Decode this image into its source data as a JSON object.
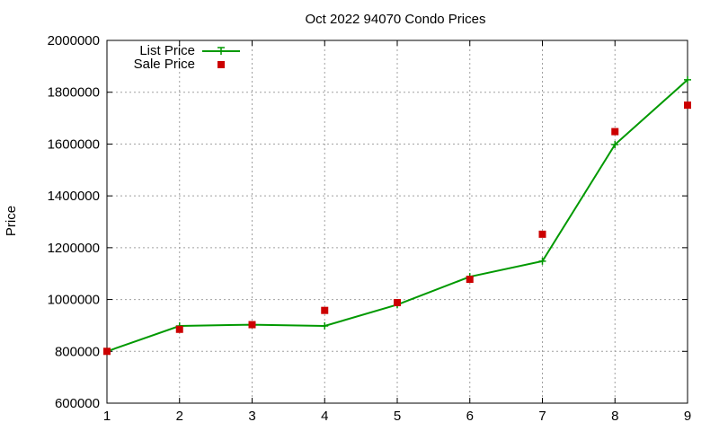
{
  "chart_data": {
    "type": "line",
    "title": "Oct 2022 94070 Condo Prices",
    "xlabel": "",
    "ylabel": "Price",
    "xlim": [
      1,
      9
    ],
    "ylim": [
      600000,
      2000000
    ],
    "xticks": [
      1,
      2,
      3,
      4,
      5,
      6,
      7,
      8,
      9
    ],
    "yticks": [
      600000,
      800000,
      1000000,
      1200000,
      1400000,
      1600000,
      1800000,
      2000000
    ],
    "grid": true,
    "legend_position": "top-left",
    "x": [
      1,
      2,
      3,
      4,
      5,
      6,
      7,
      8,
      9
    ],
    "series": [
      {
        "name": "List Price",
        "style": "line-with-plus-markers",
        "color": "#009900",
        "values": [
          800000,
          898000,
          903000,
          898000,
          980000,
          1088000,
          1148000,
          1598000,
          1848000
        ]
      },
      {
        "name": "Sale Price",
        "style": "square-markers",
        "color": "#cc0000",
        "values": [
          800000,
          885000,
          903000,
          958000,
          988000,
          1078000,
          1252000,
          1648000,
          1750000
        ]
      }
    ]
  }
}
